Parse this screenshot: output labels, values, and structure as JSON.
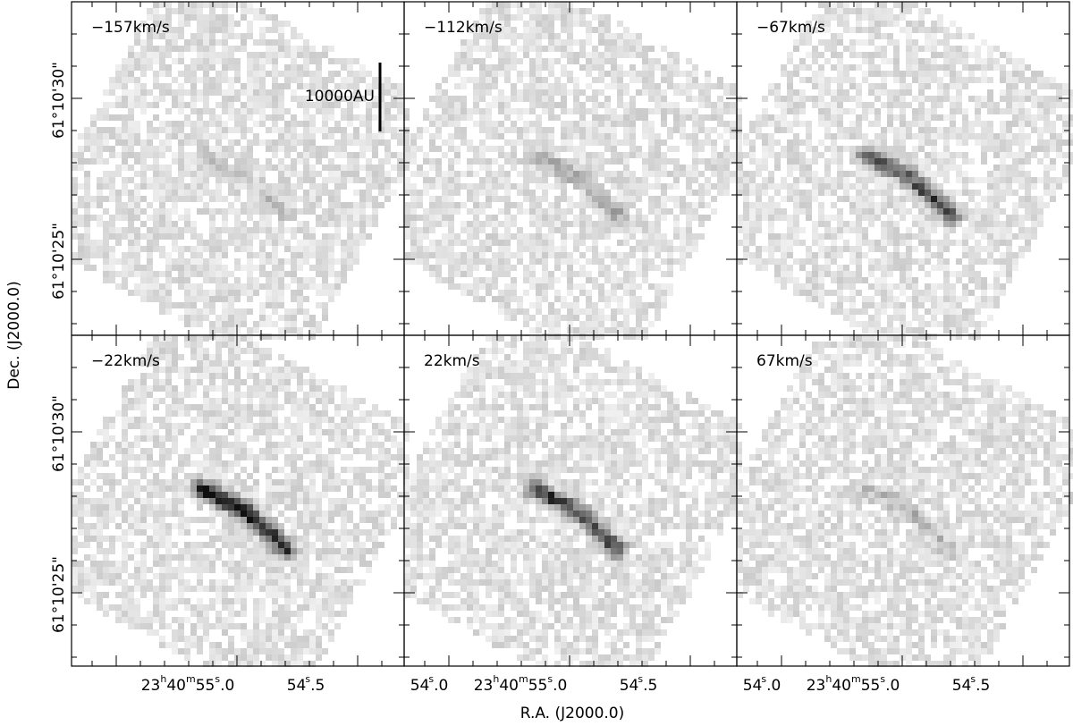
{
  "figure": {
    "panels": [
      {
        "label": "−157km/s"
      },
      {
        "label": "−112km/s"
      },
      {
        "label": "−67km/s"
      },
      {
        "label": "−22km/s"
      },
      {
        "label": "22km/s"
      },
      {
        "label": "67km/s"
      }
    ],
    "scale_bar": "10000AU",
    "x_axis": {
      "title": "R.A. (J2000.0)",
      "tick_labels": [
        [
          {
            "text": "23"
          },
          {
            "text": "h",
            "sup": true
          },
          {
            "text": "40"
          },
          {
            "text": "m",
            "sup": true
          },
          {
            "text": "55"
          },
          {
            "text": "s",
            "sup": true
          },
          {
            "text": ".0"
          }
        ],
        [
          {
            "text": "54"
          },
          {
            "text": "s",
            "sup": true
          },
          {
            "text": ".5"
          }
        ],
        [
          {
            "text": "54"
          },
          {
            "text": "s",
            "sup": true
          },
          {
            "text": ".0"
          }
        ]
      ]
    },
    "y_axis": {
      "title": "Dec. (J2000.0)",
      "tick_labels": [
        "61°10'30\"",
        "61°10'25\""
      ]
    }
  }
}
